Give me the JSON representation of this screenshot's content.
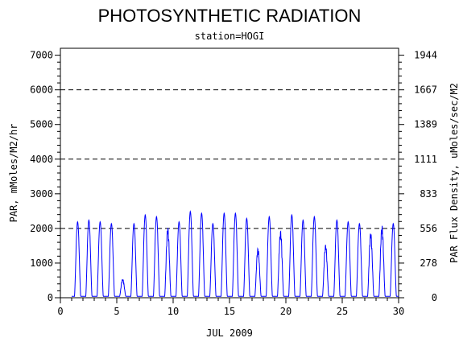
{
  "chart_data": {
    "type": "line",
    "title": "PHOTOSYNTHETIC RADIATION",
    "subtitle": "station=HOGI",
    "xlabel": "JUL 2009",
    "ylabel": "PAR, mMoles/M2/hr",
    "y2label": "PAR Flux Density, uMoles/sec/M2",
    "xlim": [
      0,
      30
    ],
    "ylim": [
      0,
      7200
    ],
    "x_ticks": [
      "0",
      "5",
      "10",
      "15",
      "20",
      "25",
      "30"
    ],
    "y_ticks": [
      "0",
      "1000",
      "2000",
      "3000",
      "4000",
      "5000",
      "6000",
      "7000"
    ],
    "y2_ticks": [
      "0",
      "278",
      "556",
      "833",
      "1111",
      "1389",
      "1667",
      "1944"
    ],
    "reference_lines": [
      2000,
      4000,
      6000
    ],
    "line_color": "#0000ff",
    "day_peaks": [
      {
        "day": 1,
        "peak": 2150
      },
      {
        "day": 2,
        "peak": 2200
      },
      {
        "day": 3,
        "peak": 2150
      },
      {
        "day": 4,
        "peak": 2100
      },
      {
        "day": 5,
        "peak": 500
      },
      {
        "day": 6,
        "peak": 2100
      },
      {
        "day": 7,
        "peak": 2350
      },
      {
        "day": 8,
        "peak": 2300
      },
      {
        "day": 9,
        "peak": 2000
      },
      {
        "day": 10,
        "peak": 2150
      },
      {
        "day": 11,
        "peak": 2450
      },
      {
        "day": 12,
        "peak": 2400
      },
      {
        "day": 13,
        "peak": 2100
      },
      {
        "day": 14,
        "peak": 2400
      },
      {
        "day": 15,
        "peak": 2400
      },
      {
        "day": 16,
        "peak": 2250
      },
      {
        "day": 17,
        "peak": 1400
      },
      {
        "day": 18,
        "peak": 2300
      },
      {
        "day": 19,
        "peak": 1900
      },
      {
        "day": 20,
        "peak": 2350
      },
      {
        "day": 21,
        "peak": 2200
      },
      {
        "day": 22,
        "peak": 2300
      },
      {
        "day": 23,
        "peak": 1500
      },
      {
        "day": 24,
        "peak": 2200
      },
      {
        "day": 25,
        "peak": 2150
      },
      {
        "day": 26,
        "peak": 2100
      },
      {
        "day": 27,
        "peak": 1850
      },
      {
        "day": 28,
        "peak": 2050
      },
      {
        "day": 29,
        "peak": 2100
      }
    ]
  }
}
